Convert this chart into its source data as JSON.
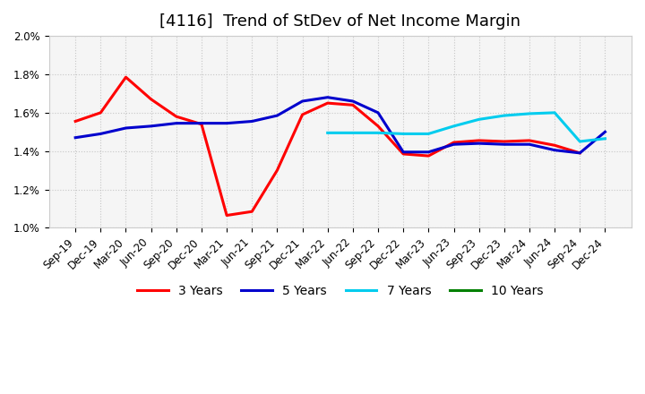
{
  "title": "[4116]  Trend of StDev of Net Income Margin",
  "x_labels": [
    "Sep-19",
    "Dec-19",
    "Mar-20",
    "Jun-20",
    "Sep-20",
    "Dec-20",
    "Mar-21",
    "Jun-21",
    "Sep-21",
    "Dec-21",
    "Mar-22",
    "Jun-22",
    "Sep-22",
    "Dec-22",
    "Mar-23",
    "Jun-23",
    "Sep-23",
    "Dec-23",
    "Mar-24",
    "Jun-24",
    "Sep-24",
    "Dec-24"
  ],
  "series": {
    "3 Years": {
      "color": "#ff0000",
      "values": [
        0.01555,
        0.016,
        0.01785,
        0.0167,
        0.0158,
        0.0154,
        0.01065,
        0.01085,
        0.013,
        0.0159,
        0.0165,
        0.0164,
        0.0153,
        0.01385,
        0.01375,
        0.01445,
        0.01455,
        0.0145,
        0.01455,
        0.0143,
        0.0139,
        null
      ]
    },
    "5 Years": {
      "color": "#0000cd",
      "values": [
        0.0147,
        0.0149,
        0.0152,
        0.0153,
        0.01545,
        0.01545,
        0.01545,
        0.01555,
        0.01585,
        0.0166,
        0.0168,
        0.0166,
        0.016,
        0.01395,
        0.01395,
        0.01435,
        0.0144,
        0.01435,
        0.01435,
        0.01405,
        0.0139,
        0.015
      ]
    },
    "7 Years": {
      "color": "#00ccee",
      "values": [
        null,
        null,
        null,
        null,
        null,
        null,
        null,
        null,
        null,
        null,
        0.01495,
        0.01495,
        0.01495,
        0.0149,
        0.0149,
        0.0153,
        0.01565,
        0.01585,
        0.01595,
        0.016,
        0.0145,
        0.01465
      ]
    },
    "10 Years": {
      "color": "#008000",
      "values": [
        null,
        null,
        null,
        null,
        null,
        null,
        null,
        null,
        null,
        null,
        null,
        null,
        null,
        null,
        null,
        null,
        null,
        null,
        null,
        null,
        null,
        null
      ]
    }
  },
  "ylim": [
    0.01,
    0.02
  ],
  "yticks": [
    0.01,
    0.012,
    0.014,
    0.016,
    0.018,
    0.02
  ],
  "background_color": "#ffffff",
  "plot_bg_color": "#f5f5f5",
  "grid_color": "#bbbbbb",
  "title_fontsize": 13,
  "legend_fontsize": 10,
  "tick_fontsize": 8.5,
  "linewidth": 2.2
}
